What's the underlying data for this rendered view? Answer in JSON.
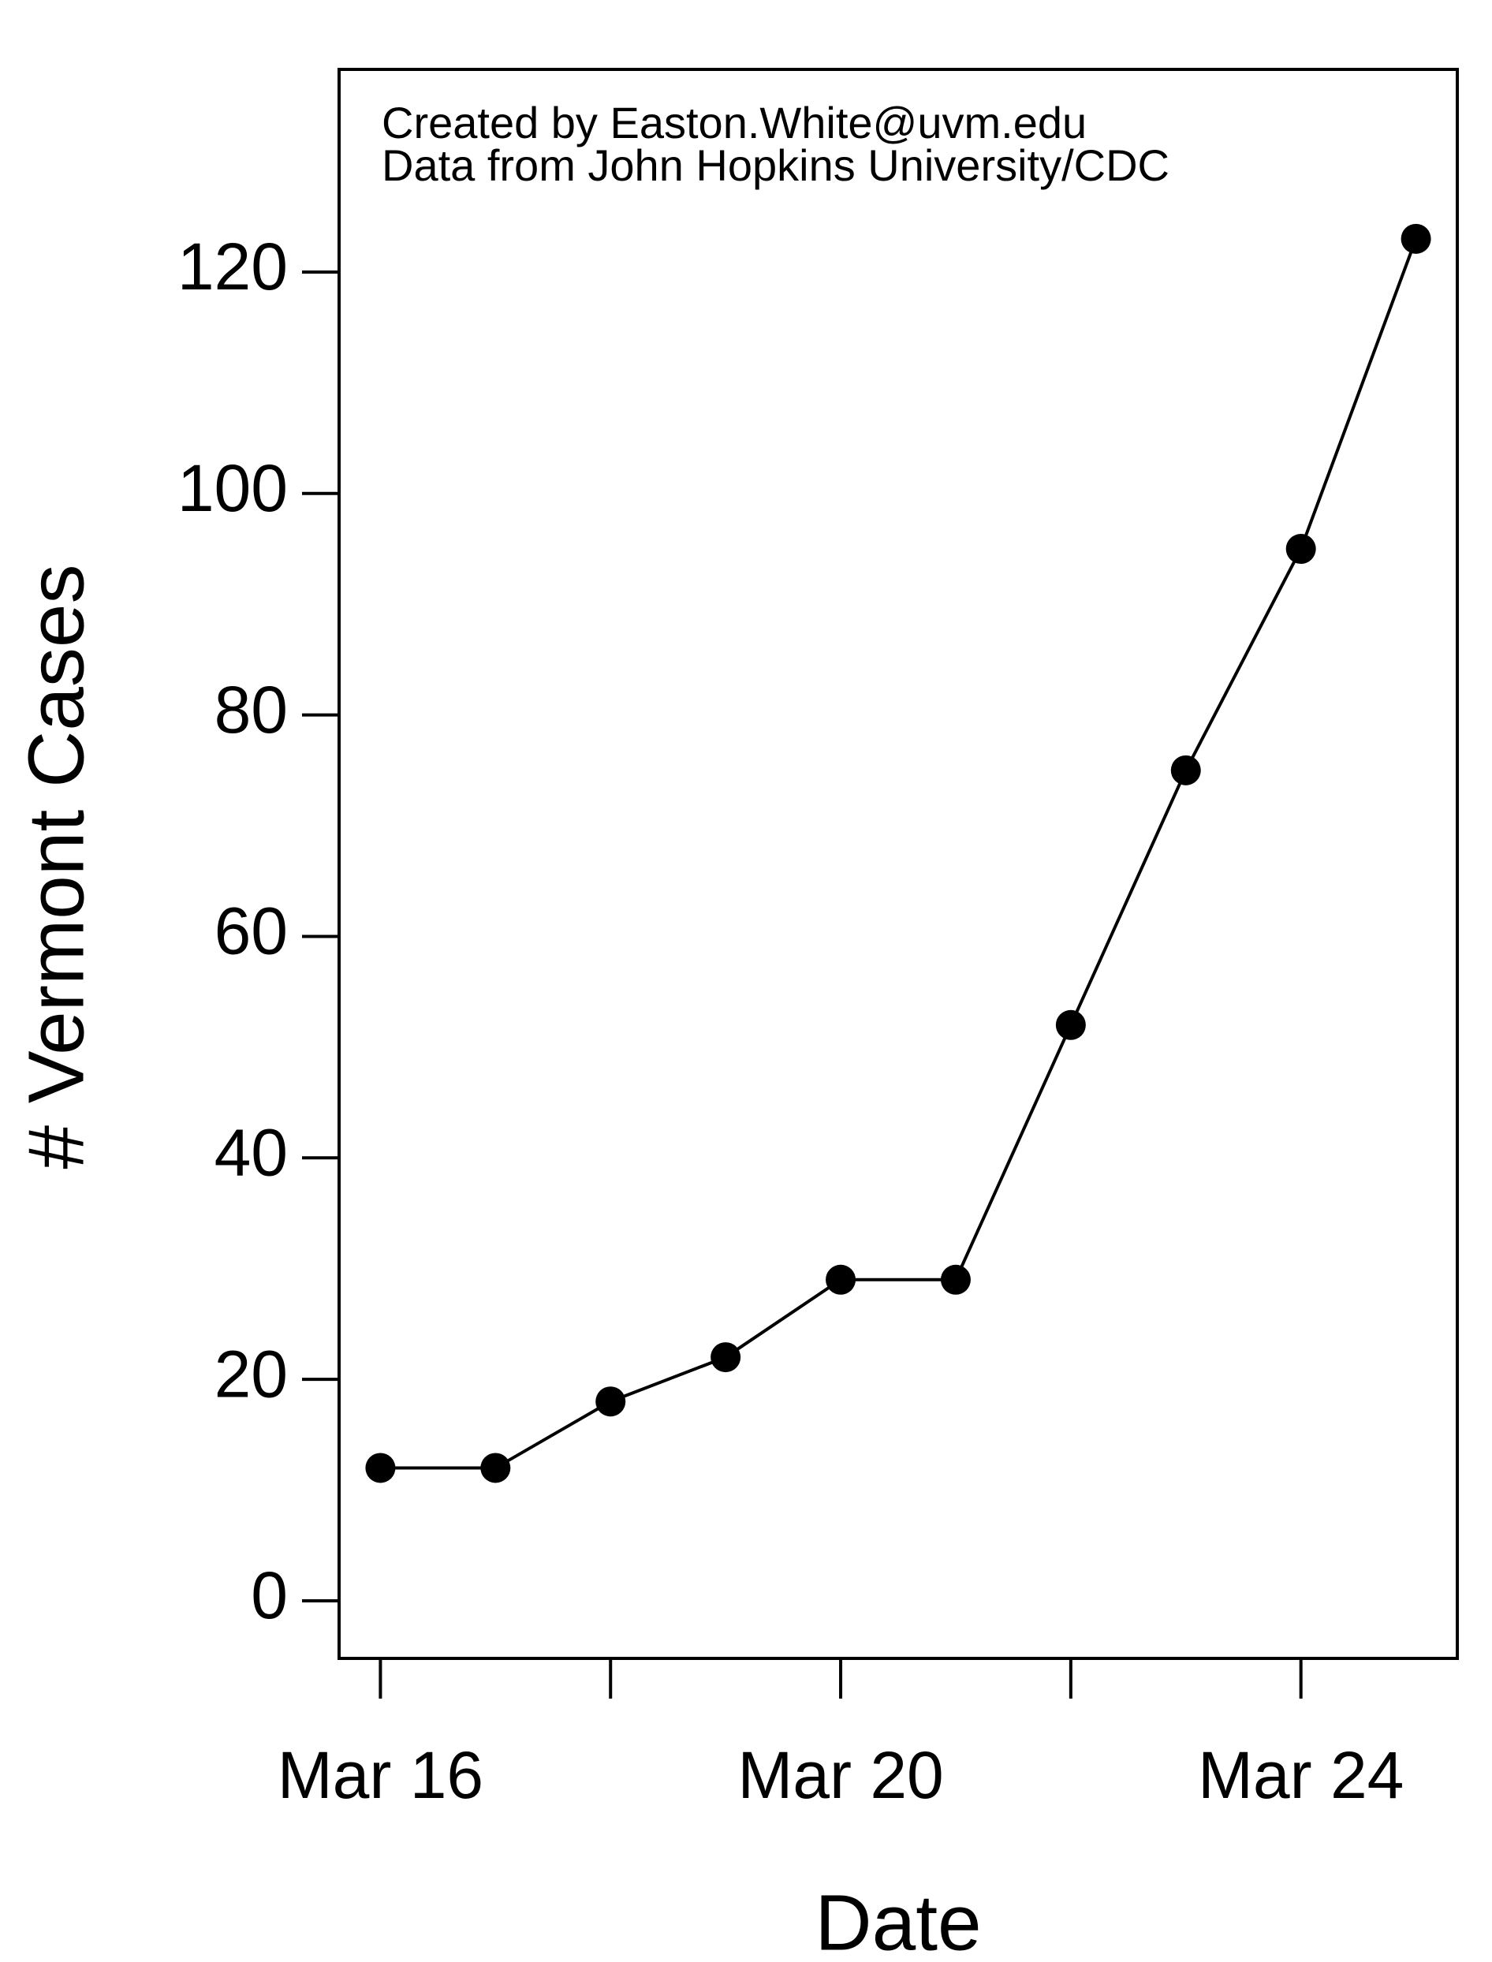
{
  "chart_data": {
    "type": "line",
    "annotations": [
      "Created by Easton.White@uvm.edu",
      "Data from John Hopkins University/CDC"
    ],
    "x_label": "Date",
    "y_label": "# Vermont Cases",
    "categories": [
      "Mar 16",
      null,
      null,
      null,
      "Mar 20",
      null,
      null,
      null,
      "Mar 24",
      null
    ],
    "values": [
      12,
      12,
      18,
      22,
      29,
      29,
      52,
      75,
      95,
      123
    ],
    "color": "#000000",
    "ylim": [
      -5.2,
      138.3
    ],
    "yticks": [
      0,
      20,
      40,
      60,
      80,
      100,
      120
    ]
  }
}
